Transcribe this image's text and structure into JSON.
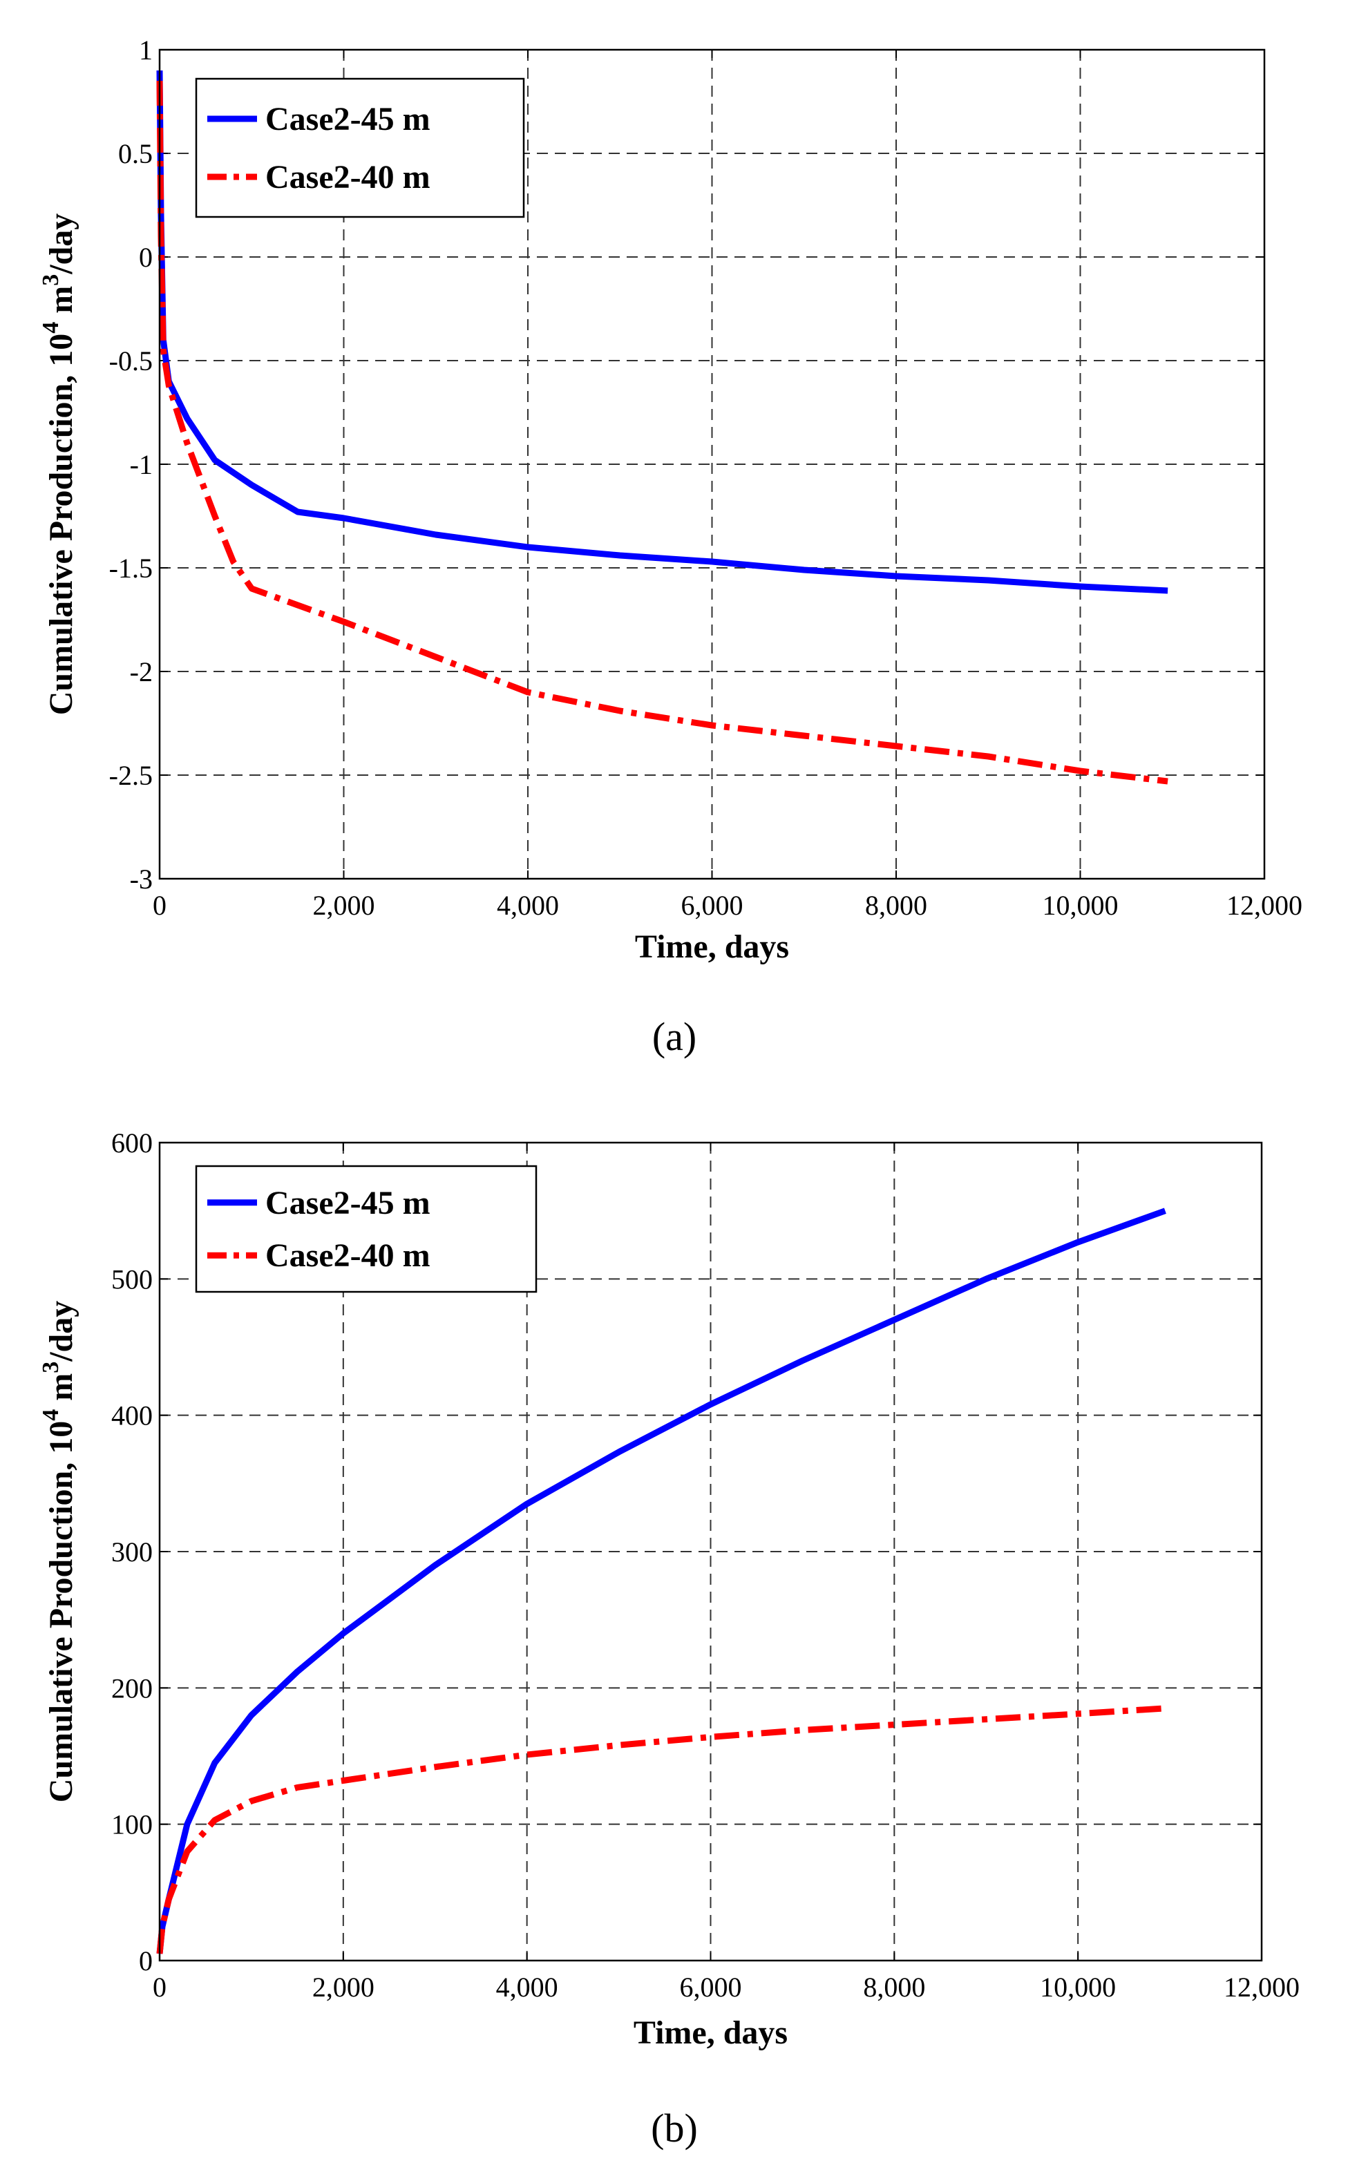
{
  "colors": {
    "series1": "#0000ff",
    "series2": "#ff0000",
    "axis": "#000000",
    "grid": "#333333"
  },
  "chart_data": [
    {
      "id": "a",
      "caption": "(a)",
      "type": "line",
      "xlabel": "Time, days",
      "ylabel": {
        "main": "Cumulative Production, 10",
        "sup1": "4",
        "mid": " m",
        "sup2": "3",
        "tail": "/day"
      },
      "xlim": [
        0,
        12000
      ],
      "ylim": [
        -3,
        1
      ],
      "xticks": [
        0,
        2000,
        4000,
        6000,
        8000,
        10000,
        12000
      ],
      "xtick_labels": [
        "0",
        "2,000",
        "4,000",
        "6,000",
        "8,000",
        "10,000",
        "12,000"
      ],
      "yticks": [
        1,
        0.5,
        0,
        -0.5,
        -1,
        -1.5,
        -2,
        -2.5,
        -3
      ],
      "ytick_labels": [
        "1",
        "0.5",
        "0",
        "-0.5",
        "-1",
        "-1.5",
        "-2",
        "-2.5",
        "-3"
      ],
      "grid": true,
      "legend": "top-left",
      "series": [
        {
          "name": "Case2-45 m",
          "style": "solid",
          "color": "#0000ff",
          "x": [
            0,
            15,
            40,
            100,
            300,
            600,
            1000,
            1500,
            2000,
            3000,
            4000,
            5000,
            6000,
            7000,
            8000,
            9000,
            10000,
            10950
          ],
          "y": [
            0.9,
            0.2,
            -0.4,
            -0.6,
            -0.78,
            -0.98,
            -1.1,
            -1.23,
            -1.26,
            -1.34,
            -1.4,
            -1.44,
            -1.47,
            -1.51,
            -1.54,
            -1.56,
            -1.59,
            -1.61
          ]
        },
        {
          "name": "Case2-40 m",
          "style": "dashdot",
          "color": "#ff0000",
          "x": [
            0,
            15,
            40,
            100,
            300,
            600,
            800,
            1000,
            1500,
            2000,
            3000,
            4000,
            5000,
            6000,
            7000,
            8000,
            9000,
            10000,
            10950
          ],
          "y": [
            0.85,
            0.1,
            -0.45,
            -0.62,
            -0.9,
            -1.25,
            -1.47,
            -1.6,
            -1.68,
            -1.76,
            -1.93,
            -2.1,
            -2.19,
            -2.26,
            -2.31,
            -2.36,
            -2.41,
            -2.48,
            -2.53
          ]
        }
      ]
    },
    {
      "id": "b",
      "caption": "(b)",
      "type": "line",
      "xlabel": "Time, days",
      "ylabel": {
        "main": "Cumulative Production, 10",
        "sup1": "4",
        "mid": " m",
        "sup2": "3",
        "tail": "/day"
      },
      "xlim": [
        0,
        12000
      ],
      "ylim": [
        0,
        600
      ],
      "xticks": [
        0,
        2000,
        4000,
        6000,
        8000,
        10000,
        12000
      ],
      "xtick_labels": [
        "0",
        "2,000",
        "4,000",
        "6,000",
        "8,000",
        "10,000",
        "12,000"
      ],
      "yticks": [
        600,
        500,
        400,
        300,
        200,
        100,
        0
      ],
      "ytick_labels": [
        "600",
        "500",
        "400",
        "300",
        "200",
        "100",
        "0"
      ],
      "grid": true,
      "legend": "top-left",
      "series": [
        {
          "name": "Case2-45 m",
          "style": "solid",
          "color": "#0000ff",
          "x": [
            0,
            30,
            100,
            300,
            600,
            1000,
            1500,
            2000,
            2500,
            3000,
            4000,
            5000,
            6000,
            7000,
            8000,
            9000,
            10000,
            10950
          ],
          "y": [
            5,
            25,
            45,
            100,
            145,
            180,
            212,
            240,
            265,
            290,
            335,
            373,
            408,
            440,
            470,
            500,
            527,
            550
          ]
        },
        {
          "name": "Case2-40 m",
          "style": "dashdot",
          "color": "#ff0000",
          "x": [
            0,
            30,
            100,
            300,
            600,
            1000,
            1500,
            2000,
            3000,
            4000,
            5000,
            6000,
            7000,
            8000,
            9000,
            10000,
            10950
          ],
          "y": [
            5,
            25,
            45,
            80,
            103,
            117,
            127,
            132,
            142,
            151,
            158,
            164,
            169,
            173,
            177,
            181,
            185
          ]
        }
      ]
    }
  ]
}
